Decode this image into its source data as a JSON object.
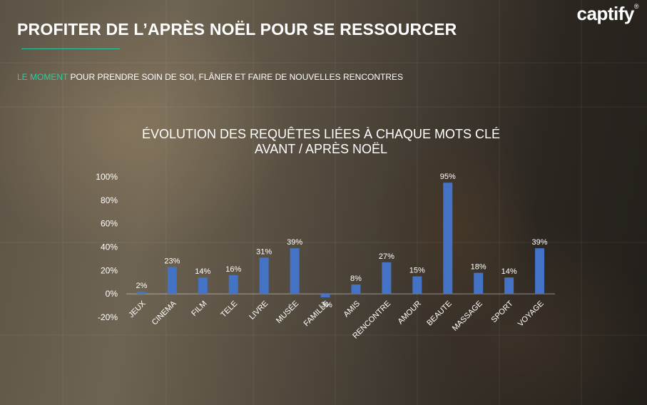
{
  "header": {
    "title": "PROFITER DE L’APRÈS NOËL POUR SE RESSOURCER",
    "subtitle_highlight": "LE MOMENT",
    "subtitle_rest": " POUR PRENDRE SOIN DE SOI, FLÂNER ET FAIRE DE NOUVELLES RENCONTRES"
  },
  "logo": {
    "text": "captify",
    "mark": "®"
  },
  "colors": {
    "bar": "#4472c4",
    "accent": "#35c99a",
    "text": "#ffffff"
  },
  "chart_data": {
    "type": "bar",
    "title_line1": "ÉVOLUTION DES REQUÊTES LIÉES À CHAQUE MOTS CLÉ",
    "title_line2": "AVANT / APRÈS NOËL",
    "categories": [
      "JEUX",
      "CINEMA",
      "FILM",
      "TELE",
      "LIVRE",
      "MUSÉE",
      "FAMILLE",
      "AMIS",
      "RENCONTRE",
      "AMOUR",
      "BEAUTE",
      "MASSAGE",
      "SPORT",
      "VOYAGE"
    ],
    "values": [
      2,
      23,
      14,
      16,
      31,
      39,
      -3,
      8,
      27,
      15,
      95,
      18,
      14,
      39
    ],
    "data_labels": [
      "2%",
      "23%",
      "14%",
      "16%",
      "31%",
      "39%",
      "-3%",
      "8%",
      "27%",
      "15%",
      "95%",
      "18%",
      "14%",
      "39%"
    ],
    "ylim": [
      -20,
      100
    ],
    "yticks": [
      -20,
      0,
      20,
      40,
      60,
      80,
      100
    ],
    "ytick_labels": [
      "-20%",
      "0%",
      "20%",
      "40%",
      "60%",
      "80%",
      "100%"
    ],
    "xlabel": "",
    "ylabel": "",
    "grid": false,
    "legend": "none"
  }
}
